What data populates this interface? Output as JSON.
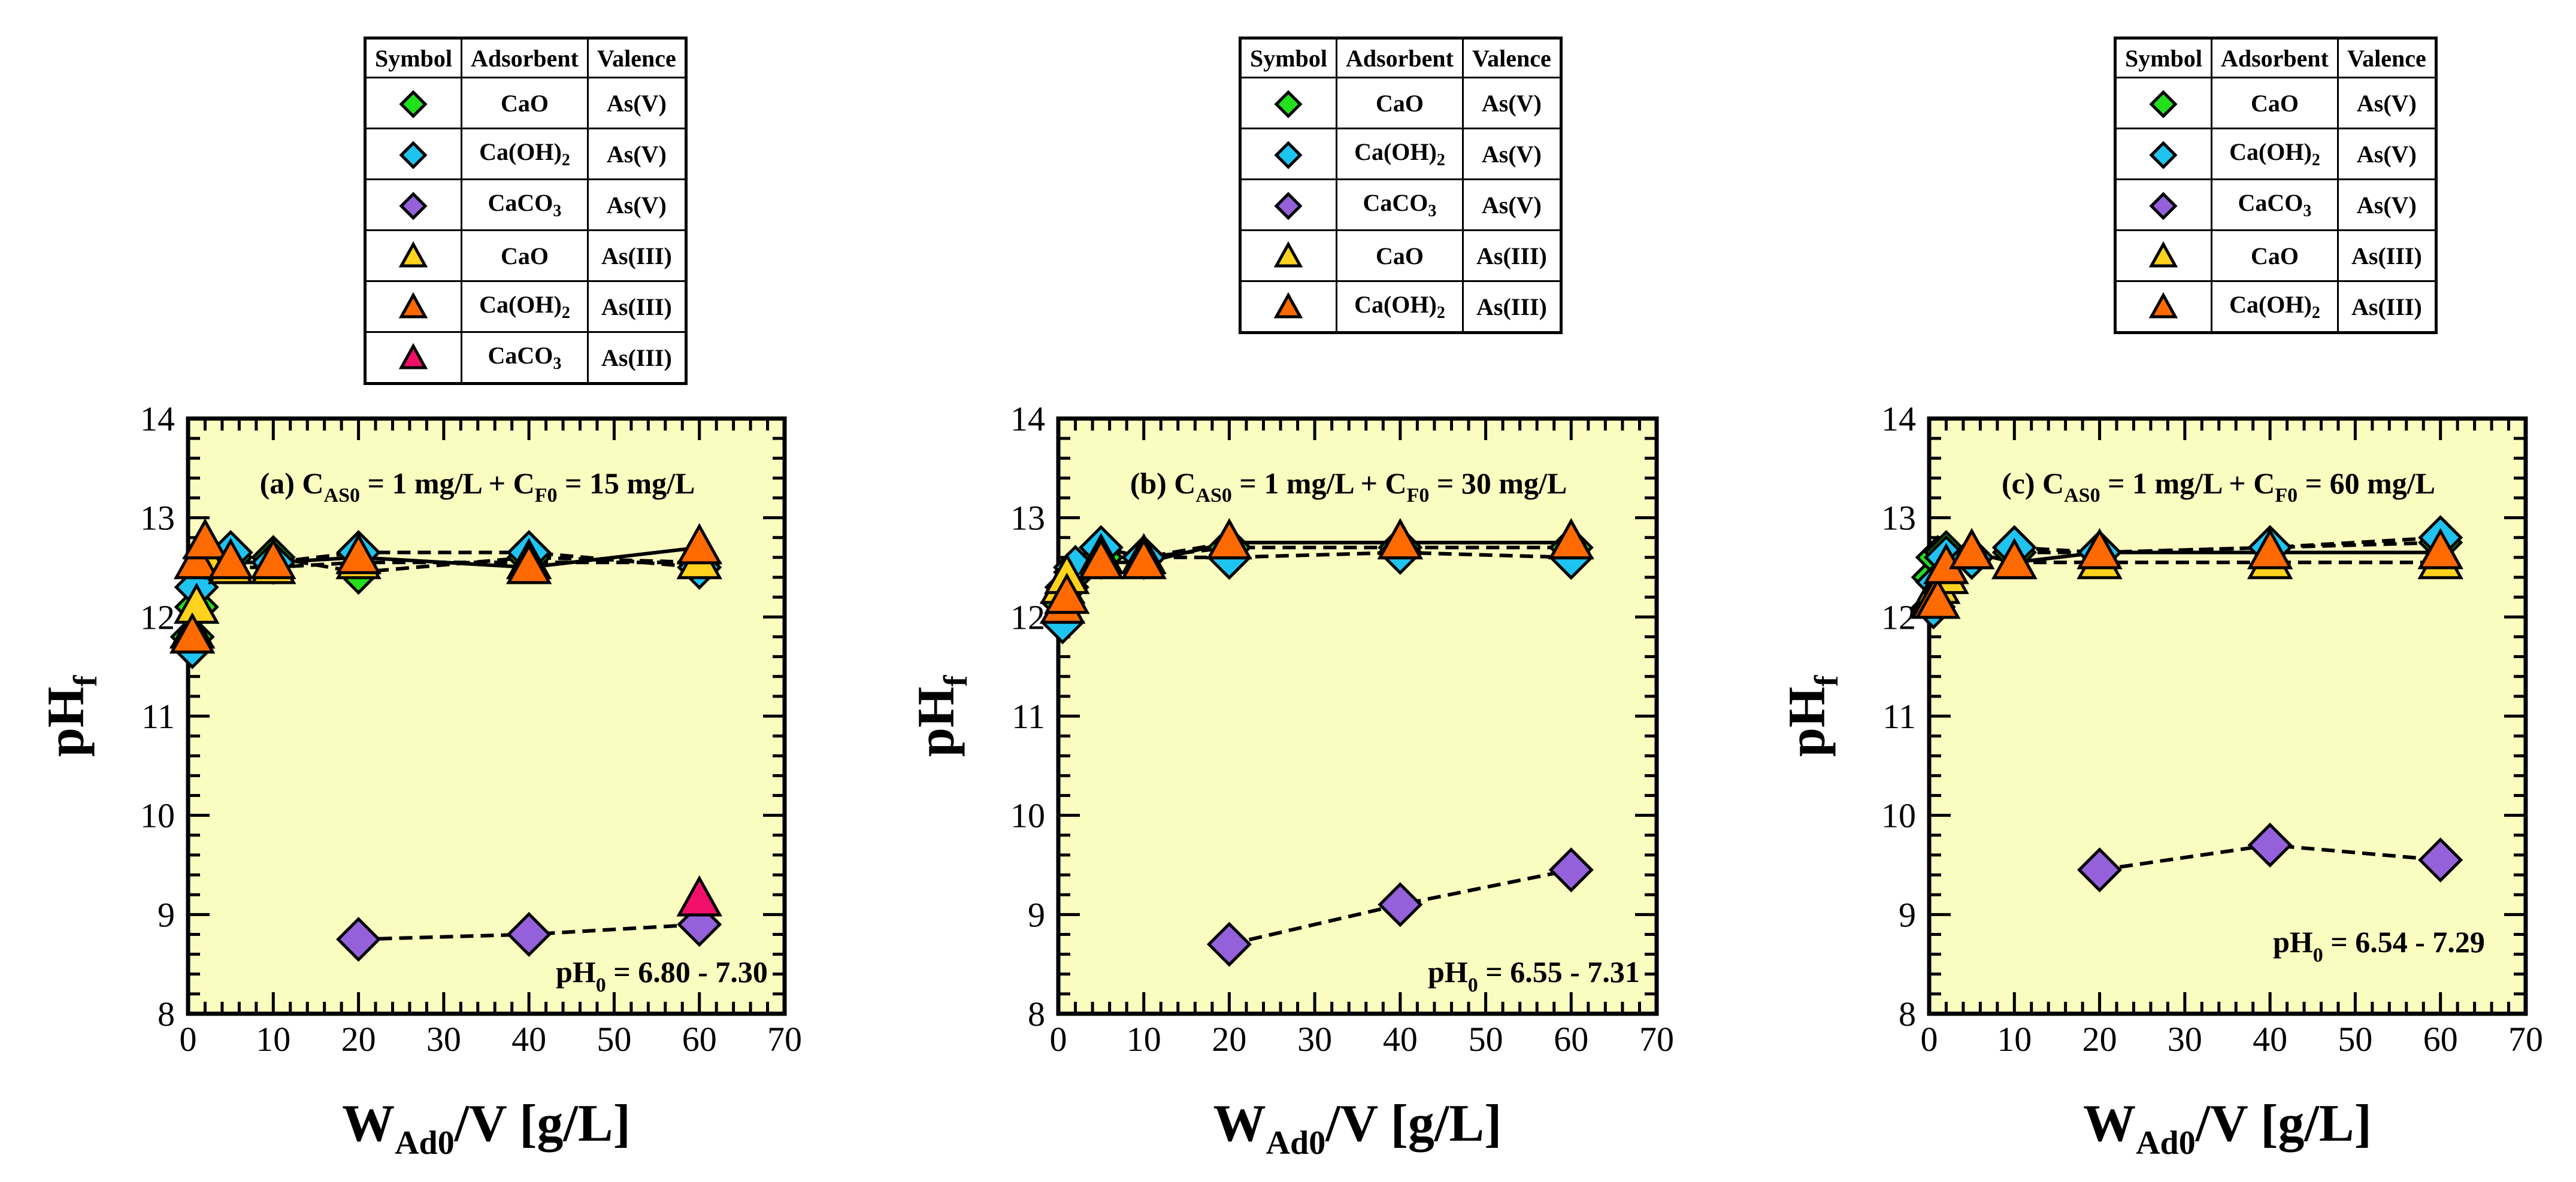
{
  "colors": {
    "plot_bg": "#FAFCC0",
    "green": "#22E01C",
    "blue": "#1EC3F0",
    "purple": "#9461DA",
    "yellow": "#FFD21E",
    "orange": "#FF6A00",
    "pink": "#F0106A"
  },
  "legend_headers": [
    "Symbol",
    "Adsorbent",
    "Valence"
  ],
  "legend_rows": [
    {
      "color": "green",
      "marker": "diamond",
      "adsorbent": "CaO",
      "sub": "",
      "valence": "As(V)"
    },
    {
      "color": "blue",
      "marker": "diamond",
      "adsorbent": "Ca(OH)",
      "sub": "2",
      "valence": "As(V)"
    },
    {
      "color": "purple",
      "marker": "diamond",
      "adsorbent": "CaCO",
      "sub": "3",
      "valence": "As(V)"
    },
    {
      "color": "yellow",
      "marker": "triangle",
      "adsorbent": "CaO",
      "sub": "",
      "valence": "As(III)"
    },
    {
      "color": "orange",
      "marker": "triangle",
      "adsorbent": "Ca(OH)",
      "sub": "2",
      "valence": "As(III)"
    },
    {
      "color": "pink",
      "marker": "triangle",
      "adsorbent": "CaCO",
      "sub": "3",
      "valence": "As(III)"
    }
  ],
  "chart_data": [
    {
      "type": "scatter",
      "title": {
        "prefix": "(a) C",
        "sub1": "AS0",
        "mid": " = 1 mg/L + C",
        "sub2": "F0",
        "suffix": " = 15 mg/L"
      },
      "annotation": {
        "main": "pH",
        "sub": "0",
        "rest": " = 6.80 - 7.30"
      },
      "legend_count": 6,
      "xlabel": {
        "main": "W",
        "sub": "Ad0",
        "rest": "/V  [g/L]"
      },
      "ylabel": {
        "main": "pH",
        "sub": "f"
      },
      "xlim": [
        0,
        70
      ],
      "ylim": [
        8,
        14
      ],
      "xticks": [
        "0",
        "10",
        "20",
        "30",
        "40",
        "50",
        "60",
        "70"
      ],
      "yticks": [
        "8",
        "9",
        "10",
        "11",
        "12",
        "13",
        "14"
      ],
      "series": [
        {
          "name": "CaO As(V)",
          "color": "green",
          "marker": "diamond",
          "line": "dash",
          "x": [
            0.5,
            1,
            2,
            5,
            10,
            20,
            40,
            60
          ],
          "y": [
            11.8,
            12.1,
            12.5,
            12.6,
            12.6,
            12.45,
            12.6,
            12.55
          ]
        },
        {
          "name": "Ca(OH)2 As(V)",
          "color": "blue",
          "marker": "diamond",
          "line": "dash",
          "x": [
            0.5,
            1,
            2,
            5,
            10,
            20,
            40,
            60
          ],
          "y": [
            11.7,
            12.3,
            12.6,
            12.65,
            12.55,
            12.65,
            12.65,
            12.5
          ]
        },
        {
          "name": "CaCO3 As(V)",
          "color": "purple",
          "marker": "diamond",
          "line": "dash",
          "x": [
            20,
            40,
            60
          ],
          "y": [
            8.75,
            8.8,
            8.9
          ]
        },
        {
          "name": "CaO As(III)",
          "color": "yellow",
          "marker": "triangle",
          "line": "dash",
          "x": [
            0.5,
            1,
            2,
            5,
            10,
            20,
            40,
            60
          ],
          "y": [
            11.85,
            12.1,
            12.6,
            12.5,
            12.5,
            12.55,
            12.55,
            12.55
          ]
        },
        {
          "name": "Ca(OH)2 As(III)",
          "color": "orange",
          "marker": "triangle",
          "line": "solid",
          "x": [
            0.5,
            1,
            2,
            5,
            10,
            20,
            40,
            60
          ],
          "y": [
            11.8,
            12.55,
            12.75,
            12.55,
            12.55,
            12.6,
            12.5,
            12.7
          ]
        },
        {
          "name": "CaCO3 As(III)",
          "color": "pink",
          "marker": "triangle",
          "line": "none",
          "x": [
            60
          ],
          "y": [
            9.15
          ]
        }
      ]
    },
    {
      "type": "scatter",
      "title": {
        "prefix": "(b) C",
        "sub1": "AS0",
        "mid": " = 1 mg/L + C",
        "sub2": "F0",
        "suffix": " = 30 mg/L"
      },
      "annotation": {
        "main": "pH",
        "sub": "0",
        "rest": " = 6.55 - 7.31"
      },
      "legend_count": 5,
      "xlabel": {
        "main": "W",
        "sub": "Ad0",
        "rest": "/V  [g/L]"
      },
      "ylabel": {
        "main": "pH",
        "sub": "f"
      },
      "xlim": [
        0,
        70
      ],
      "ylim": [
        8,
        14
      ],
      "xticks": [
        "0",
        "10",
        "20",
        "30",
        "40",
        "50",
        "60",
        "70"
      ],
      "yticks": [
        "8",
        "9",
        "10",
        "11",
        "12",
        "13",
        "14"
      ],
      "series": [
        {
          "name": "CaO As(V)",
          "color": "green",
          "marker": "diamond",
          "line": "dash",
          "x": [
            0.5,
            1,
            2,
            5,
            10,
            20,
            40,
            60
          ],
          "y": [
            12.15,
            12.3,
            12.45,
            12.6,
            12.6,
            12.7,
            12.7,
            12.7
          ]
        },
        {
          "name": "Ca(OH)2 As(V)",
          "color": "blue",
          "marker": "diamond",
          "line": "dash",
          "x": [
            0.5,
            1,
            2,
            5,
            10,
            20,
            40,
            60
          ],
          "y": [
            11.95,
            12.3,
            12.5,
            12.7,
            12.6,
            12.6,
            12.65,
            12.6
          ]
        },
        {
          "name": "CaCO3 As(V)",
          "color": "purple",
          "marker": "diamond",
          "line": "dash",
          "x": [
            20,
            40,
            60
          ],
          "y": [
            8.7,
            9.1,
            9.45
          ]
        },
        {
          "name": "CaO As(III)",
          "color": "yellow",
          "marker": "triangle",
          "line": "dash",
          "x": [
            0.5,
            1,
            5,
            10,
            20,
            40,
            60
          ],
          "y": [
            12.3,
            12.4,
            12.6,
            12.6,
            12.75,
            12.75,
            12.75
          ]
        },
        {
          "name": "Ca(OH)2 As(III)",
          "color": "orange",
          "marker": "triangle",
          "line": "solid",
          "x": [
            0.5,
            1,
            5,
            10,
            20,
            40,
            60
          ],
          "y": [
            12.1,
            12.2,
            12.55,
            12.55,
            12.75,
            12.75,
            12.75
          ]
        }
      ]
    },
    {
      "type": "scatter",
      "title": {
        "prefix": "(c) C",
        "sub1": "AS0",
        "mid": " = 1 mg/L + C",
        "sub2": "F0",
        "suffix": " = 60 mg/L"
      },
      "annotation": {
        "main": "pH",
        "sub": "0",
        "rest": " = 6.54 - 7.29"
      },
      "legend_count": 5,
      "xlabel": {
        "main": "W",
        "sub": "Ad0",
        "rest": "/V  [g/L]"
      },
      "ylabel": {
        "main": "pH",
        "sub": "f"
      },
      "xlim": [
        0,
        70
      ],
      "ylim": [
        8,
        14
      ],
      "xticks": [
        "0",
        "10",
        "20",
        "30",
        "40",
        "50",
        "60",
        "70"
      ],
      "yticks": [
        "8",
        "9",
        "10",
        "11",
        "12",
        "13",
        "14"
      ],
      "series": [
        {
          "name": "CaO As(V)",
          "color": "green",
          "marker": "diamond",
          "line": "dash",
          "x": [
            0.5,
            1,
            2,
            5,
            10,
            20,
            40,
            60
          ],
          "y": [
            12.4,
            12.6,
            12.65,
            12.6,
            12.65,
            12.65,
            12.7,
            12.75
          ]
        },
        {
          "name": "Ca(OH)2 As(V)",
          "color": "blue",
          "marker": "diamond",
          "line": "dash",
          "x": [
            0.5,
            1,
            2,
            5,
            10,
            20,
            40,
            60
          ],
          "y": [
            12.1,
            12.35,
            12.6,
            12.6,
            12.7,
            12.65,
            12.7,
            12.8
          ]
        },
        {
          "name": "CaCO3 As(V)",
          "color": "purple",
          "marker": "diamond",
          "line": "dash",
          "x": [
            20,
            40,
            60
          ],
          "y": [
            9.45,
            9.7,
            9.55
          ]
        },
        {
          "name": "CaO As(III)",
          "color": "yellow",
          "marker": "triangle",
          "line": "dash",
          "x": [
            0.5,
            1,
            2,
            5,
            10,
            20,
            40,
            60
          ],
          "y": [
            12.2,
            12.3,
            12.4,
            12.65,
            12.55,
            12.55,
            12.55,
            12.55
          ]
        },
        {
          "name": "Ca(OH)2 As(III)",
          "color": "orange",
          "marker": "triangle",
          "line": "solid",
          "x": [
            0.5,
            1,
            2,
            5,
            10,
            20,
            40,
            60
          ],
          "y": [
            12.15,
            12.15,
            12.5,
            12.65,
            12.55,
            12.65,
            12.65,
            12.65
          ]
        }
      ]
    }
  ]
}
